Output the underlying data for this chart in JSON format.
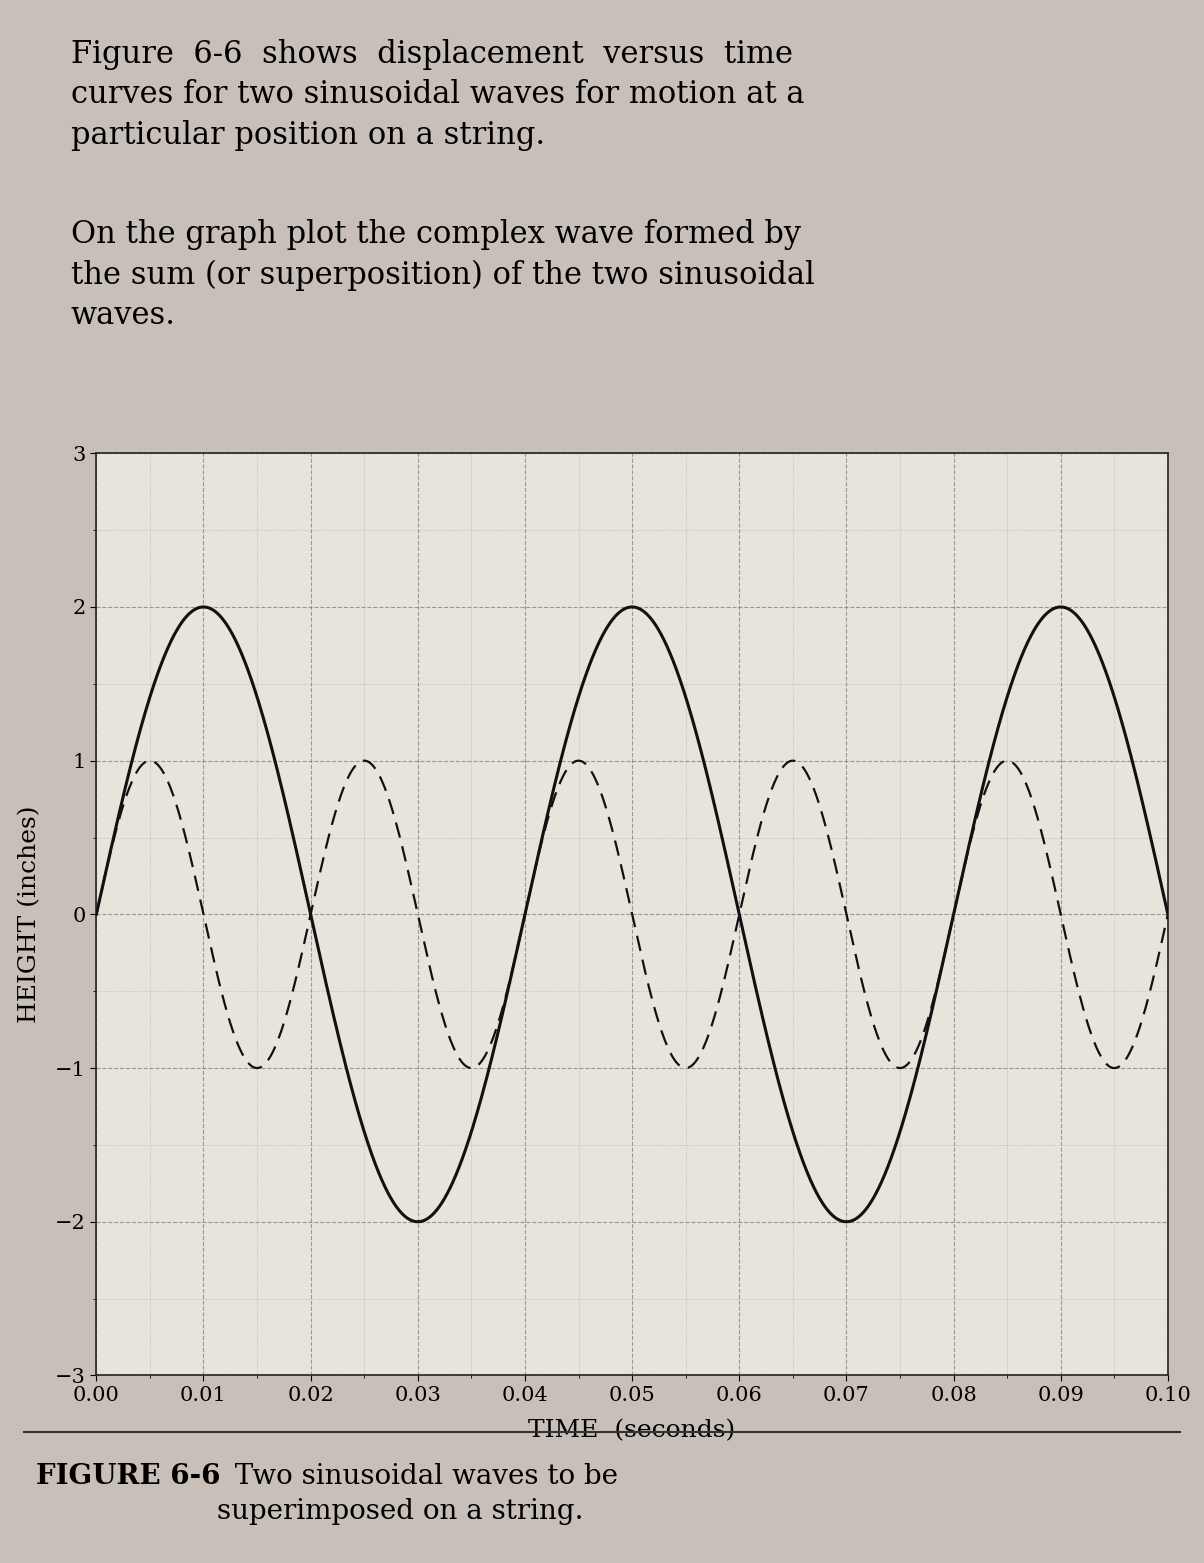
{
  "para1_line1": "Figure  6-6  shows  displacement  versus  time",
  "para1_line2": "curves for two sinusoidal waves for motion at a",
  "para1_line3": "particular position on a string.",
  "para2_line1": "On the graph plot the complex wave formed by",
  "para2_line2": "the sum (or superposition) of the two sinusoidal",
  "para2_line3": "waves.",
  "caption_bold": "FIGURE 6-6",
  "caption_rest": "  Two sinusoidal waves to be\nsuperimposed on a string.",
  "xlabel": "TIME  (seconds)",
  "ylabel": "HEIGHT (inches)",
  "ylim": [
    -3,
    3
  ],
  "xlim": [
    0.0,
    0.1
  ],
  "yticks": [
    -3,
    -2,
    -1,
    0,
    1,
    2,
    3
  ],
  "xticks": [
    0.0,
    0.01,
    0.02,
    0.03,
    0.04,
    0.05,
    0.06,
    0.07,
    0.08,
    0.09,
    0.1
  ],
  "wave1_amplitude": 2.0,
  "wave1_frequency": 25,
  "wave1_phase": 0.0,
  "wave2_amplitude": 1.0,
  "wave2_frequency": 50,
  "wave2_phase": 0.0,
  "wave1_color": "#111111",
  "wave2_color": "#111111",
  "wave1_linewidth": 2.2,
  "wave2_linewidth": 1.6,
  "grid_color": "#777777",
  "background_color": "#c8c0b8",
  "plot_bg_color": "#e8e4dc",
  "text_color": "#000000",
  "title_fontsize": 22,
  "axis_label_fontsize": 18,
  "tick_fontsize": 15,
  "caption_fontsize": 20
}
